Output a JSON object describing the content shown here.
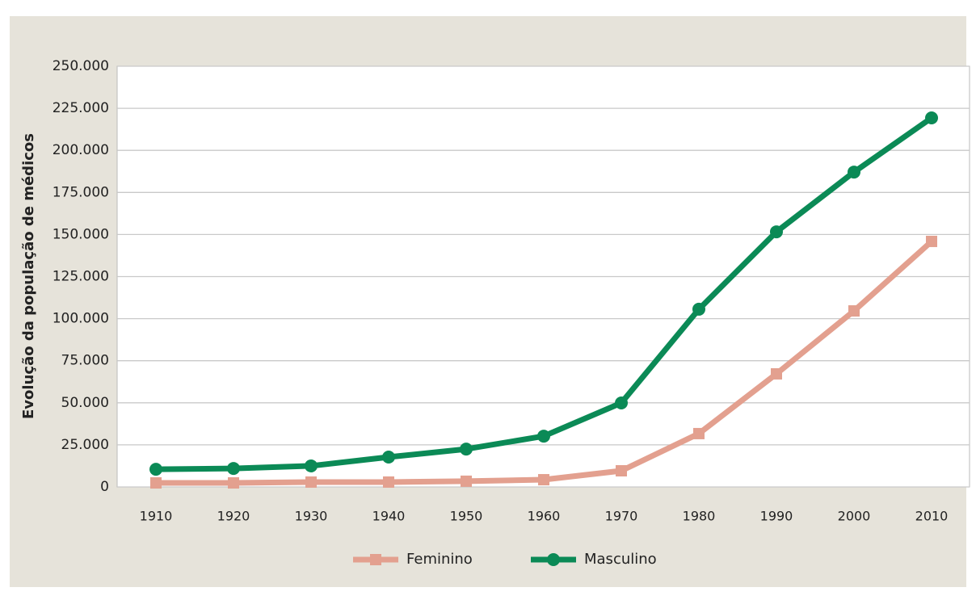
{
  "chart_data": {
    "type": "line",
    "y_label": "Evolução da população de médicos",
    "categories": [
      "1910",
      "1920",
      "1930",
      "1940",
      "1950",
      "1960",
      "1970",
      "1980",
      "1990",
      "2000",
      "2010"
    ],
    "series": [
      {
        "name": "Feminino",
        "color": "#e3a08f",
        "marker": "square",
        "values": [
          2400,
          2400,
          2900,
          2900,
          3400,
          4300,
          9600,
          31700,
          67200,
          104600,
          145900
        ]
      },
      {
        "name": "Masculino",
        "color": "#0b8a56",
        "marker": "circle",
        "values": [
          10500,
          11000,
          12500,
          17750,
          22500,
          30200,
          49900,
          105600,
          151600,
          187100,
          219300
        ]
      }
    ],
    "ylim": [
      0,
      250000
    ],
    "yticks": [
      0,
      {
        "value": 25000,
        "label": "25.000"
      },
      {
        "value": 50000,
        "label": "50.000"
      },
      {
        "value": 75000,
        "label": "75.000"
      },
      {
        "value": 100000,
        "label": "100.000"
      },
      {
        "value": 125000,
        "label": "125.000"
      },
      {
        "value": 150000,
        "label": "150.000"
      },
      {
        "value": 175000,
        "label": "175.000"
      },
      {
        "value": 200000,
        "label": "200.000"
      },
      {
        "value": 225000,
        "label": "225.000"
      },
      {
        "value": 250000,
        "label": "250.000"
      }
    ],
    "grid": true,
    "legend": "bottom"
  }
}
